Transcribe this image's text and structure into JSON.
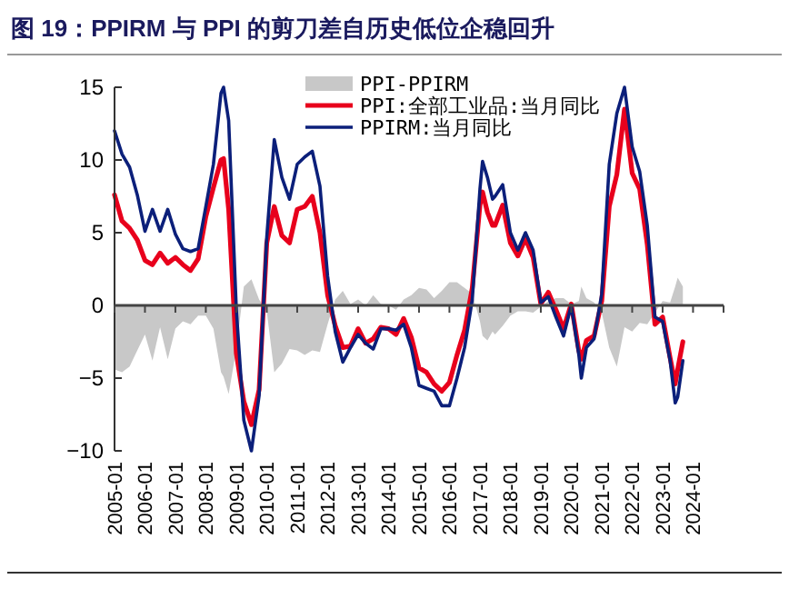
{
  "chart_data": {
    "type": "line",
    "title": "图 19：PPIRM 与 PPI 的剪刀差自历史低位企稳回升",
    "x": [
      "2005-01",
      "2005-04",
      "2005-07",
      "2005-10",
      "2006-01",
      "2006-04",
      "2006-07",
      "2006-10",
      "2007-01",
      "2007-04",
      "2007-07",
      "2007-10",
      "2008-01",
      "2008-04",
      "2008-07",
      "2008-08",
      "2008-10",
      "2009-01",
      "2009-04",
      "2009-07",
      "2009-10",
      "2010-01",
      "2010-04",
      "2010-07",
      "2010-10",
      "2011-01",
      "2011-04",
      "2011-07",
      "2011-10",
      "2012-01",
      "2012-04",
      "2012-07",
      "2012-10",
      "2013-01",
      "2013-04",
      "2013-07",
      "2013-10",
      "2014-01",
      "2014-04",
      "2014-07",
      "2014-10",
      "2015-01",
      "2015-04",
      "2015-07",
      "2015-10",
      "2016-01",
      "2016-04",
      "2016-07",
      "2016-10",
      "2017-01",
      "2017-02",
      "2017-04",
      "2017-06",
      "2017-07",
      "2017-10",
      "2018-01",
      "2018-04",
      "2018-07",
      "2018-10",
      "2019-01",
      "2019-04",
      "2019-07",
      "2019-10",
      "2020-01",
      "2020-04",
      "2020-05",
      "2020-07",
      "2020-10",
      "2021-01",
      "2021-04",
      "2021-07",
      "2021-10",
      "2022-01",
      "2022-04",
      "2022-07",
      "2022-10",
      "2023-01",
      "2023-04",
      "2023-06",
      "2023-07",
      "2023-09"
    ],
    "series": [
      {
        "name": "PPI-PPIRM",
        "type": "area",
        "color": "#c8c8c8",
        "values": [
          -4.4,
          -4.6,
          -4.2,
          -3.1,
          -2.0,
          -3.8,
          -1.5,
          -3.7,
          -1.6,
          -1.1,
          -1.3,
          -0.7,
          -0.7,
          -1.6,
          -4.6,
          -4.9,
          -6.1,
          -3.0,
          1.3,
          1.8,
          0.4,
          -0.4,
          -4.6,
          -4.0,
          -3.0,
          -3.1,
          -3.4,
          -3.1,
          -3.2,
          -1.3,
          0.4,
          1.0,
          0.1,
          0.4,
          0.0,
          0.7,
          0.1,
          0.0,
          -0.3,
          0.4,
          0.7,
          1.2,
          1.1,
          0.5,
          1.0,
          1.6,
          1.6,
          1.2,
          0.8,
          -1.1,
          -2.1,
          -2.4,
          -1.8,
          -2.0,
          -1.4,
          -0.7,
          -0.4,
          -0.4,
          -0.5,
          -0.1,
          0.3,
          0.5,
          0.5,
          0.1,
          0.3,
          1.3,
          0.5,
          0.2,
          -0.5,
          -2.9,
          -4.2,
          -1.5,
          -1.8,
          -1.2,
          -1.3,
          -0.5,
          0.3,
          0.2,
          1.3,
          1.9,
          1.3
        ]
      },
      {
        "name": "PPI:全部工业品:当月同比",
        "color": "#e8001c",
        "values": [
          7.6,
          5.8,
          5.3,
          4.5,
          3.1,
          2.8,
          3.6,
          2.9,
          3.3,
          2.8,
          2.4,
          3.2,
          6.1,
          8.1,
          10.0,
          10.1,
          6.6,
          -3.3,
          -6.6,
          -8.2,
          -5.8,
          4.3,
          6.8,
          4.8,
          4.3,
          6.6,
          6.8,
          7.5,
          5.0,
          0.7,
          -1.4,
          -2.9,
          -2.8,
          -1.6,
          -2.6,
          -2.3,
          -1.5,
          -1.6,
          -2.0,
          -0.9,
          -2.2,
          -4.3,
          -4.6,
          -5.4,
          -5.9,
          -5.3,
          -3.4,
          -1.7,
          1.2,
          6.9,
          7.8,
          6.4,
          5.5,
          5.5,
          6.9,
          4.3,
          3.4,
          4.6,
          3.3,
          0.1,
          0.9,
          -0.3,
          -1.6,
          0.1,
          -3.1,
          -3.7,
          -2.4,
          -2.1,
          0.3,
          6.8,
          9.0,
          13.5,
          9.1,
          8.0,
          4.2,
          -1.3,
          -0.8,
          -3.6,
          -5.4,
          -4.4,
          -2.5
        ]
      },
      {
        "name": "PPIRM:当月同比",
        "color": "#0b1f7a",
        "values": [
          12.0,
          10.4,
          9.5,
          7.6,
          5.1,
          6.6,
          5.1,
          6.6,
          4.9,
          3.9,
          3.7,
          3.9,
          6.8,
          9.7,
          14.6,
          15.0,
          12.7,
          -0.3,
          -7.9,
          -10.0,
          -6.2,
          4.7,
          11.4,
          8.8,
          7.3,
          9.7,
          10.2,
          10.6,
          8.2,
          2.0,
          -1.8,
          -3.9,
          -2.9,
          -2.0,
          -2.6,
          -3.0,
          -1.6,
          -1.6,
          -1.7,
          -1.3,
          -2.9,
          -5.5,
          -5.7,
          -5.9,
          -6.9,
          -6.9,
          -5.0,
          -2.9,
          0.4,
          8.0,
          9.9,
          8.8,
          7.3,
          7.5,
          8.3,
          5.0,
          3.8,
          5.0,
          3.8,
          0.2,
          0.6,
          -0.8,
          -2.1,
          0.0,
          -3.4,
          -5.0,
          -2.9,
          -2.3,
          0.8,
          9.7,
          13.2,
          15.0,
          10.9,
          9.2,
          5.5,
          -0.8,
          -1.1,
          -3.8,
          -6.7,
          -6.3,
          -3.8
        ]
      }
    ],
    "xlim": [
      "2005-01",
      "2025-01"
    ],
    "xticks": [
      {
        "value": "2005-01",
        "label": "2005-01"
      },
      {
        "value": "2006-01",
        "label": "2006-01"
      },
      {
        "value": "2007-01",
        "label": "2007-01"
      },
      {
        "value": "2008-01",
        "label": "2008-01"
      },
      {
        "value": "2009-01",
        "label": "2009-01"
      },
      {
        "value": "2010-01",
        "label": "2010-01"
      },
      {
        "value": "2011-01",
        "label": "2011-01"
      },
      {
        "value": "2012-01",
        "label": "2012-01"
      },
      {
        "value": "2013-01",
        "label": "2013-01"
      },
      {
        "value": "2014-01",
        "label": "2014-01"
      },
      {
        "value": "2015-01",
        "label": "2015-01"
      },
      {
        "value": "2016-01",
        "label": "2016-01"
      },
      {
        "value": "2017-01",
        "label": "2017-01"
      },
      {
        "value": "2018-01",
        "label": "2018-01"
      },
      {
        "value": "2019-01",
        "label": "2019-01"
      },
      {
        "value": "2020-01",
        "label": "2020-01"
      },
      {
        "value": "2021-01",
        "label": "2021-01"
      },
      {
        "value": "2022-01",
        "label": "2022-01"
      },
      {
        "value": "2023-01",
        "label": "2023-01"
      },
      {
        "value": "2024-01",
        "label": "2024-01"
      },
      {
        "value": "2025-01",
        "label": null
      }
    ],
    "ylim": [
      -10,
      15
    ],
    "yticks": [
      -10,
      -5,
      0,
      5,
      10,
      15
    ],
    "legend": "top right",
    "line_style": "solid",
    "marker": "none"
  }
}
